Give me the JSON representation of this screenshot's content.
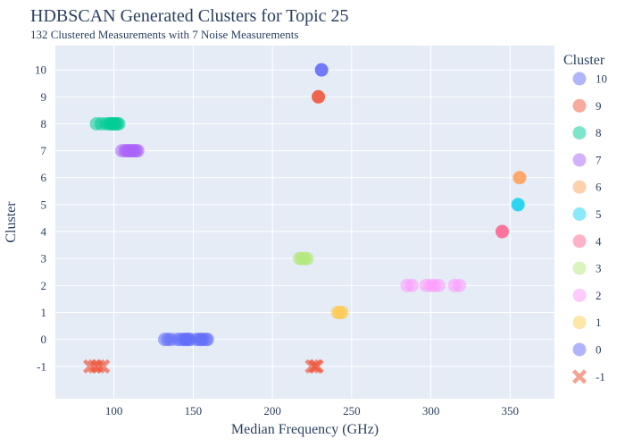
{
  "chart_data": {
    "type": "scatter",
    "title": "HDBSCAN Generated Clusters for Topic 25",
    "subtitle": "132 Clustered Measurements with 7 Noise Measurements",
    "xlabel": "Median Frequency (GHz)",
    "ylabel": "Cluster",
    "xlim": [
      63,
      378
    ],
    "ylim": [
      -2.2,
      10.9
    ],
    "xticks": [
      100,
      150,
      200,
      250,
      300,
      350
    ],
    "yticks": [
      -1,
      0,
      1,
      2,
      3,
      4,
      5,
      6,
      7,
      8,
      9,
      10
    ],
    "grid": true,
    "legend_title": "Cluster",
    "legend_position": "right",
    "series": [
      {
        "name": "10",
        "color": "#636efa",
        "marker": "circle",
        "x": [
          231
        ],
        "y": [
          10
        ]
      },
      {
        "name": "9",
        "color": "#ef553b",
        "marker": "circle",
        "x": [
          229
        ],
        "y": [
          9
        ]
      },
      {
        "name": "8",
        "color": "#00cc96",
        "marker": "circle",
        "x": [
          89,
          92,
          95,
          97,
          98,
          99,
          100,
          101,
          102,
          103
        ],
        "y": [
          8,
          8,
          8,
          8,
          8,
          8,
          8,
          8,
          8,
          8
        ]
      },
      {
        "name": "7",
        "color": "#ab63fa",
        "marker": "circle",
        "x": [
          105,
          107,
          108,
          109,
          110,
          111,
          112,
          113,
          114,
          115
        ],
        "y": [
          7,
          7,
          7,
          7,
          7,
          7,
          7,
          7,
          7,
          7
        ]
      },
      {
        "name": "6",
        "color": "#ffa15a",
        "marker": "circle",
        "x": [
          356
        ],
        "y": [
          6
        ]
      },
      {
        "name": "5",
        "color": "#19d3f3",
        "marker": "circle",
        "x": [
          355
        ],
        "y": [
          5
        ]
      },
      {
        "name": "4",
        "color": "#ff6692",
        "marker": "circle",
        "x": [
          345
        ],
        "y": [
          4
        ]
      },
      {
        "name": "3",
        "color": "#b6e880",
        "marker": "circle",
        "x": [
          217,
          218,
          219,
          220,
          221,
          222
        ],
        "y": [
          3,
          3,
          3,
          3,
          3,
          3
        ]
      },
      {
        "name": "2",
        "color": "#ff97ff",
        "marker": "circle",
        "x": [
          285,
          288,
          297,
          300,
          302,
          305,
          315,
          318
        ],
        "y": [
          2,
          2,
          2,
          2,
          2,
          2,
          2,
          2
        ]
      },
      {
        "name": "1",
        "color": "#fecb52",
        "marker": "circle",
        "x": [
          241,
          242,
          243,
          244
        ],
        "y": [
          1,
          1,
          1,
          1
        ]
      },
      {
        "name": "0",
        "color": "#636efa",
        "marker": "circle",
        "x": [
          132,
          134,
          136,
          140,
          142,
          144,
          145,
          146,
          147,
          148,
          152,
          154,
          155,
          156,
          158,
          159
        ],
        "y": [
          0,
          0,
          0,
          0,
          0,
          0,
          0,
          0,
          0,
          0,
          0,
          0,
          0,
          0,
          0,
          0
        ]
      },
      {
        "name": "-1",
        "color": "#ef553b",
        "marker": "x",
        "x": [
          85,
          88,
          90,
          93,
          225,
          227,
          228
        ],
        "y": [
          -1,
          -1,
          -1,
          -1,
          -1,
          -1,
          -1
        ]
      }
    ]
  }
}
